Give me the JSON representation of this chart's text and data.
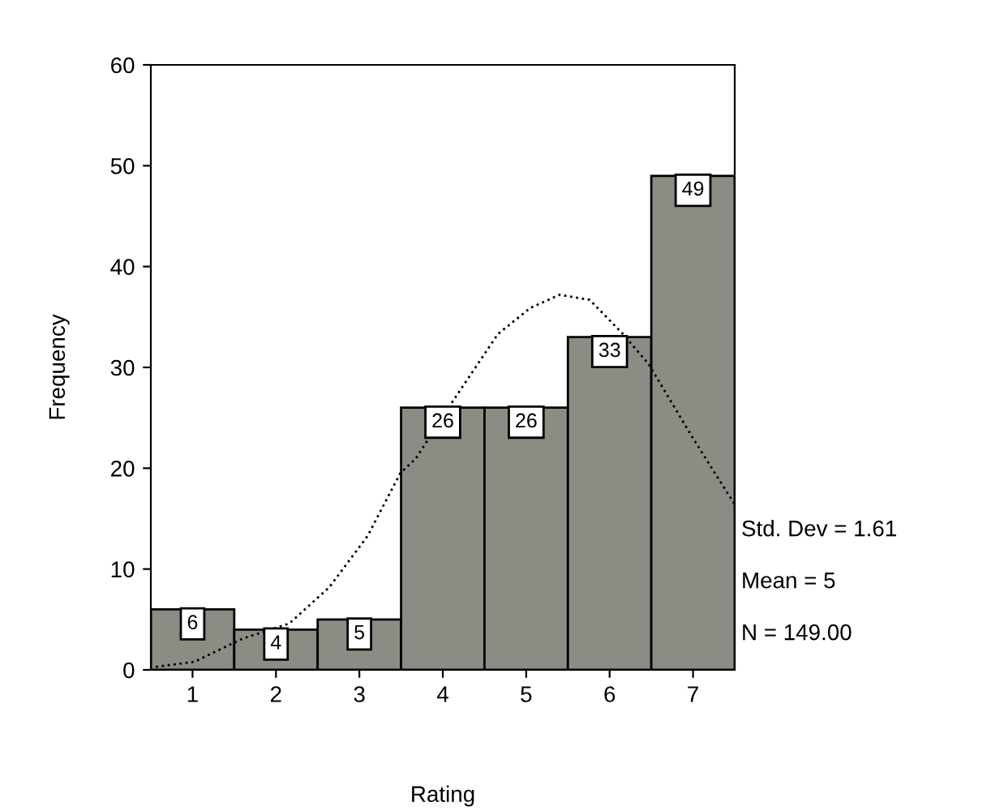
{
  "chart_data": {
    "type": "histogram",
    "xlabel": "Rating",
    "ylabel": "Frequency",
    "bins": [
      0.5,
      1.5,
      2.5,
      3.5,
      4.5,
      5.5,
      6.5,
      7.5
    ],
    "values": [
      6,
      4,
      5,
      26,
      26,
      33,
      49
    ],
    "color": "#8c8c84",
    "value_labels": [
      "6",
      "4",
      "5",
      "26",
      "26",
      "33",
      "49"
    ],
    "series": [
      {
        "type": "line",
        "color": "#000000",
        "line_style": "dotted",
        "x": [
          0.56,
          1.02,
          1.6,
          2.16,
          2.64,
          3.1,
          3.49,
          3.68,
          4.1,
          4.66,
          5.05,
          5.4,
          5.76,
          6.15,
          6.47,
          6.99,
          7.5
        ],
        "values": [
          0.3,
          0.8,
          3.1,
          4.6,
          8.2,
          13.3,
          19.5,
          21,
          26.4,
          33.3,
          35.9,
          37.2,
          36.7,
          33.4,
          30.3,
          23.1,
          16.4
        ]
      }
    ],
    "xlim": [
      0.5,
      7.5
    ],
    "xticks": [
      1,
      2,
      3,
      4,
      5,
      6,
      7
    ],
    "ylim": [
      0,
      60
    ],
    "yticks": [
      0,
      10,
      20,
      30,
      40,
      50,
      60
    ],
    "grid": false,
    "annotations": [
      "Std. Dev = 1.61",
      "Mean = 5",
      "N = 149.00"
    ]
  }
}
